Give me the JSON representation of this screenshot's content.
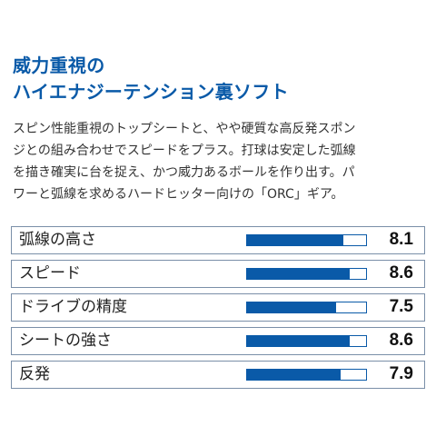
{
  "heading": {
    "line1": "威力重視の",
    "line2": "ハイエナジーテンション裏ソフト"
  },
  "description": {
    "line1": "スピン性能重視のトップシートと、やや硬質な高反発スポン",
    "line2": "ジとの組み合わせでスピードをプラス。打球は安定した弧線",
    "line3": "を描き確実に台を捉え、かつ威力あるボールを作り出す。パ",
    "line4": "ワーと弧線を求めるハードヒッター向けの「ORC」ギア。"
  },
  "ratings": [
    {
      "label": "弧線の高さ",
      "value": "8.1",
      "level": 0.81
    },
    {
      "label": "スピード",
      "value": "8.6",
      "level": 0.86
    },
    {
      "label": "ドライブの精度",
      "value": "7.5",
      "level": 0.75
    },
    {
      "label": "シートの強さ",
      "value": "8.6",
      "level": 0.86
    },
    {
      "label": "反発",
      "value": "7.9",
      "level": 0.79
    }
  ],
  "colors": {
    "accent": "#0a5aa8",
    "border": "#7a8fa8",
    "text": "#333333"
  }
}
